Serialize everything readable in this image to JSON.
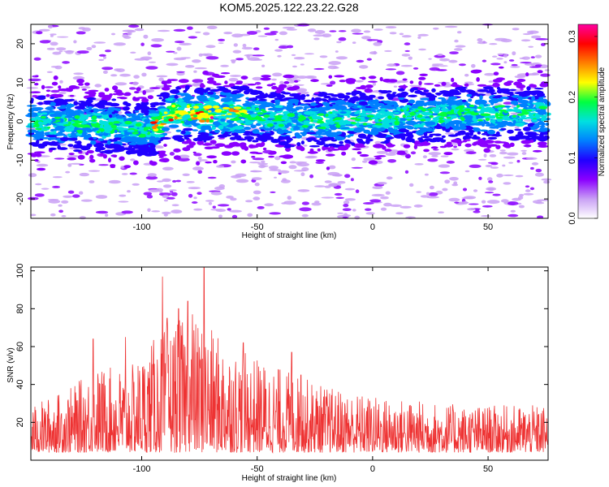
{
  "title": "KOM5.2025.122.23.22.G28",
  "colors": {
    "snr_line": "#ee3333",
    "colorbar": [
      "#ffffff",
      "#c9a0f5",
      "#8a00ff",
      "#2000ff",
      "#0080ff",
      "#00e0e0",
      "#00ff40",
      "#ffff00",
      "#ff8000",
      "#ff0000",
      "#ff00a0"
    ]
  },
  "chart_data": [
    {
      "type": "heatmap",
      "xlabel": "Height of straight line (km)",
      "ylabel": "Frequency (Hz)",
      "xlim": [
        -148,
        76
      ],
      "ylim": [
        -25,
        25
      ],
      "x_ticks": [
        "-100",
        "-50",
        "0",
        "50"
      ],
      "x_tick_values": [
        -100,
        -50,
        0,
        50
      ],
      "y_ticks": [
        "-20",
        "-10",
        "0",
        "10",
        "20"
      ],
      "y_tick_values": [
        -20,
        -10,
        0,
        10,
        20
      ],
      "band_center_hz": [
        {
          "x": -148,
          "f": 0
        },
        {
          "x": -120,
          "f": -1
        },
        {
          "x": -95,
          "f": -2
        },
        {
          "x": -88,
          "f": 2
        },
        {
          "x": -60,
          "f": 2
        },
        {
          "x": -30,
          "f": 0
        },
        {
          "x": 0,
          "f": 1
        },
        {
          "x": 40,
          "f": 2
        },
        {
          "x": 76,
          "f": 2
        }
      ],
      "colorbar": {
        "label": "Normalized spectral amplitude",
        "range": [
          0,
          0.32
        ],
        "ticks": [
          "0.0",
          "0.1",
          "0.2",
          "0.3"
        ],
        "tick_values": [
          0,
          0.1,
          0.2,
          0.3
        ]
      }
    },
    {
      "type": "line",
      "xlabel": "Height of straight line (km)",
      "ylabel": "SNR (v/v)",
      "xlim": [
        -148,
        76
      ],
      "ylim": [
        0,
        102
      ],
      "x_ticks": [
        "-100",
        "-50",
        "0",
        "50"
      ],
      "x_tick_values": [
        -100,
        -50,
        0,
        50
      ],
      "y_ticks": [
        "20",
        "40",
        "60",
        "80",
        "100"
      ],
      "y_tick_values": [
        20,
        40,
        60,
        80,
        100
      ],
      "envelope": [
        {
          "x": -148,
          "y": 25
        },
        {
          "x": -130,
          "y": 35
        },
        {
          "x": -120,
          "y": 45
        },
        {
          "x": -105,
          "y": 45
        },
        {
          "x": -95,
          "y": 60
        },
        {
          "x": -85,
          "y": 70
        },
        {
          "x": -75,
          "y": 70
        },
        {
          "x": -60,
          "y": 55
        },
        {
          "x": -40,
          "y": 45
        },
        {
          "x": -20,
          "y": 35
        },
        {
          "x": 0,
          "y": 30
        },
        {
          "x": 40,
          "y": 25
        },
        {
          "x": 76,
          "y": 25
        }
      ],
      "peaks": [
        {
          "x": -121,
          "y": 64
        },
        {
          "x": -107,
          "y": 65
        },
        {
          "x": -91,
          "y": 97
        },
        {
          "x": -89,
          "y": 75
        },
        {
          "x": -84,
          "y": 80
        },
        {
          "x": -80,
          "y": 84
        },
        {
          "x": -78,
          "y": 77
        },
        {
          "x": -73,
          "y": 103
        },
        {
          "x": -56,
          "y": 62
        },
        {
          "x": -35,
          "y": 57
        },
        {
          "x": -31,
          "y": 45
        }
      ]
    }
  ]
}
